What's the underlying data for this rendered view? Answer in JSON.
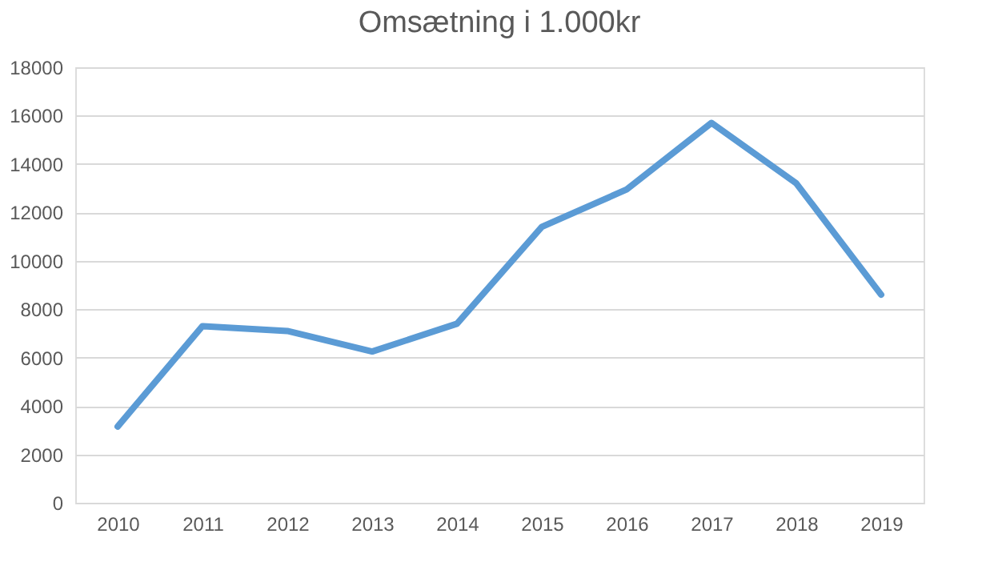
{
  "chart_data": {
    "type": "line",
    "title": "Omsætning i 1.000kr",
    "categories": [
      "2010",
      "2011",
      "2012",
      "2013",
      "2014",
      "2015",
      "2016",
      "2017",
      "2018",
      "2019"
    ],
    "series": [
      {
        "color": "#5b9bd5",
        "values": [
          3150,
          7300,
          7100,
          6250,
          7400,
          11400,
          12950,
          15700,
          13200,
          8600
        ]
      }
    ],
    "ylim": [
      0,
      18000
    ],
    "yticks": [
      0,
      2000,
      4000,
      6000,
      8000,
      10000,
      12000,
      14000,
      16000,
      18000
    ],
    "grid": "y",
    "legend": false,
    "marker": "none",
    "line_style": "solid"
  }
}
